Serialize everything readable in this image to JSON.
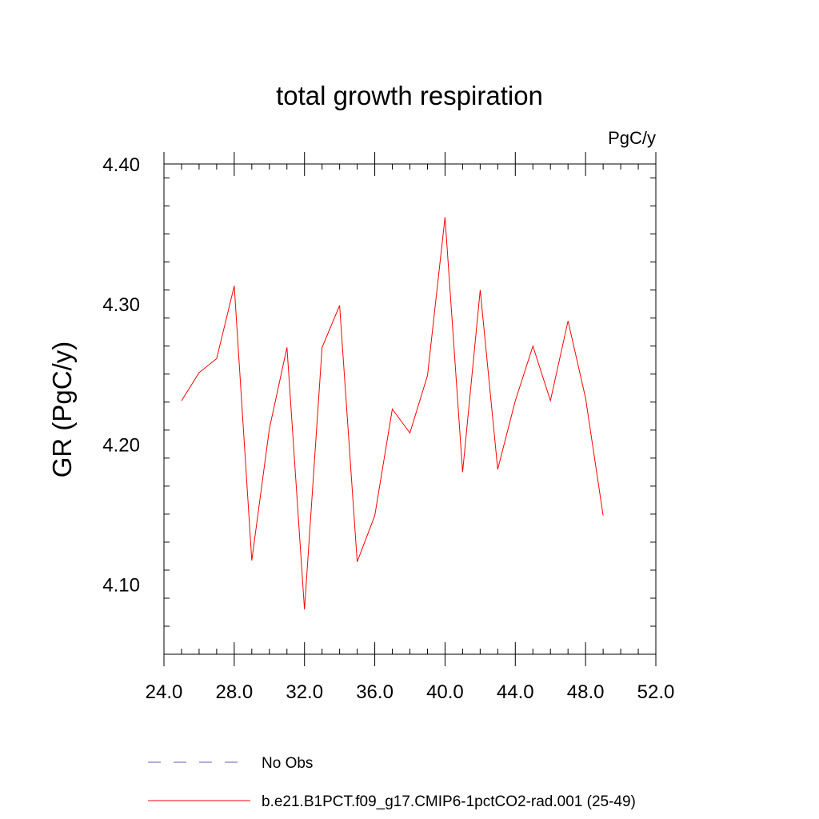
{
  "chart_data": {
    "type": "line",
    "title": "total growth respiration",
    "units": "PgC/y",
    "ylabel": "GR  (PgC/y)",
    "xlabel": "",
    "xlim": [
      24,
      52
    ],
    "ylim": [
      4.05,
      4.4
    ],
    "x_ticks": [
      "24.0",
      "28.0",
      "32.0",
      "36.0",
      "40.0",
      "44.0",
      "48.0",
      "52.0"
    ],
    "y_ticks": [
      "4.10",
      "4.20",
      "4.30",
      "4.40"
    ],
    "series": [
      {
        "name": "b.e21.B1PCT.f09_g17.CMIP6-1pctCO2-rad.001 (25-49)",
        "color": "#ff0000",
        "x": [
          25,
          26,
          27,
          28,
          29,
          30,
          31,
          32,
          33,
          34,
          35,
          36,
          37,
          38,
          39,
          40,
          41,
          42,
          43,
          44,
          45,
          46,
          47,
          48,
          49
        ],
        "y": [
          4.231,
          4.251,
          4.261,
          4.313,
          4.117,
          4.211,
          4.269,
          4.082,
          4.269,
          4.299,
          4.116,
          4.149,
          4.225,
          4.208,
          4.249,
          4.362,
          4.18,
          4.31,
          4.182,
          4.231,
          4.27,
          4.231,
          4.288,
          4.233,
          4.149
        ]
      }
    ],
    "legend": [
      {
        "label": "No Obs",
        "color": "#6a5acd",
        "style": "dashed"
      },
      {
        "label": "b.e21.B1PCT.f09_g17.CMIP6-1pctCO2-rad.001 (25-49)",
        "color": "#ff0000",
        "style": "solid"
      }
    ],
    "grid": false,
    "legend_position": "bottom"
  }
}
